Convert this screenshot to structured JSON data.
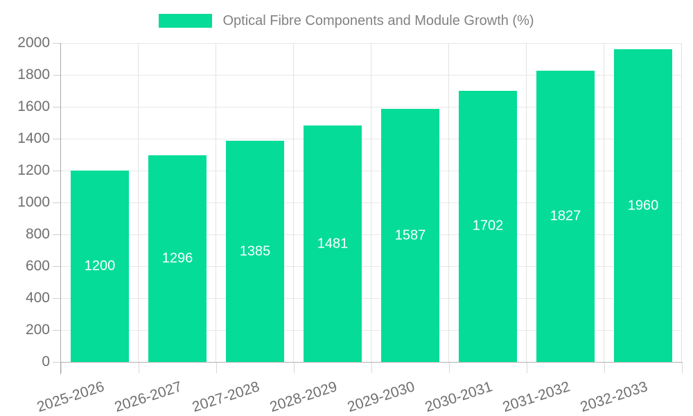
{
  "legend": {
    "label": "Optical Fibre Components and Module Growth (%)",
    "swatch_color": "#04dc97"
  },
  "chart_data": {
    "type": "bar",
    "title": "Optical Fibre Components and Module Growth (%)",
    "categories": [
      "2025-2026",
      "2026-2027",
      "2027-2028",
      "2028-2029",
      "2029-2030",
      "2030-2031",
      "2031-2032",
      "2032-2033"
    ],
    "values": [
      1200,
      1296,
      1385,
      1481,
      1587,
      1702,
      1827,
      1960
    ],
    "xlabel": "",
    "ylabel": "",
    "ylim": [
      0,
      2000
    ],
    "yticks": [
      0,
      200,
      400,
      600,
      800,
      1000,
      1200,
      1400,
      1600,
      1800,
      2000
    ],
    "grid": true,
    "legend_position": "top-center",
    "bar_color": "#04dc97",
    "value_label_color": "#ffffff",
    "axis_label_color": "#6f6f6f",
    "x_label_rotation_deg": -18
  }
}
